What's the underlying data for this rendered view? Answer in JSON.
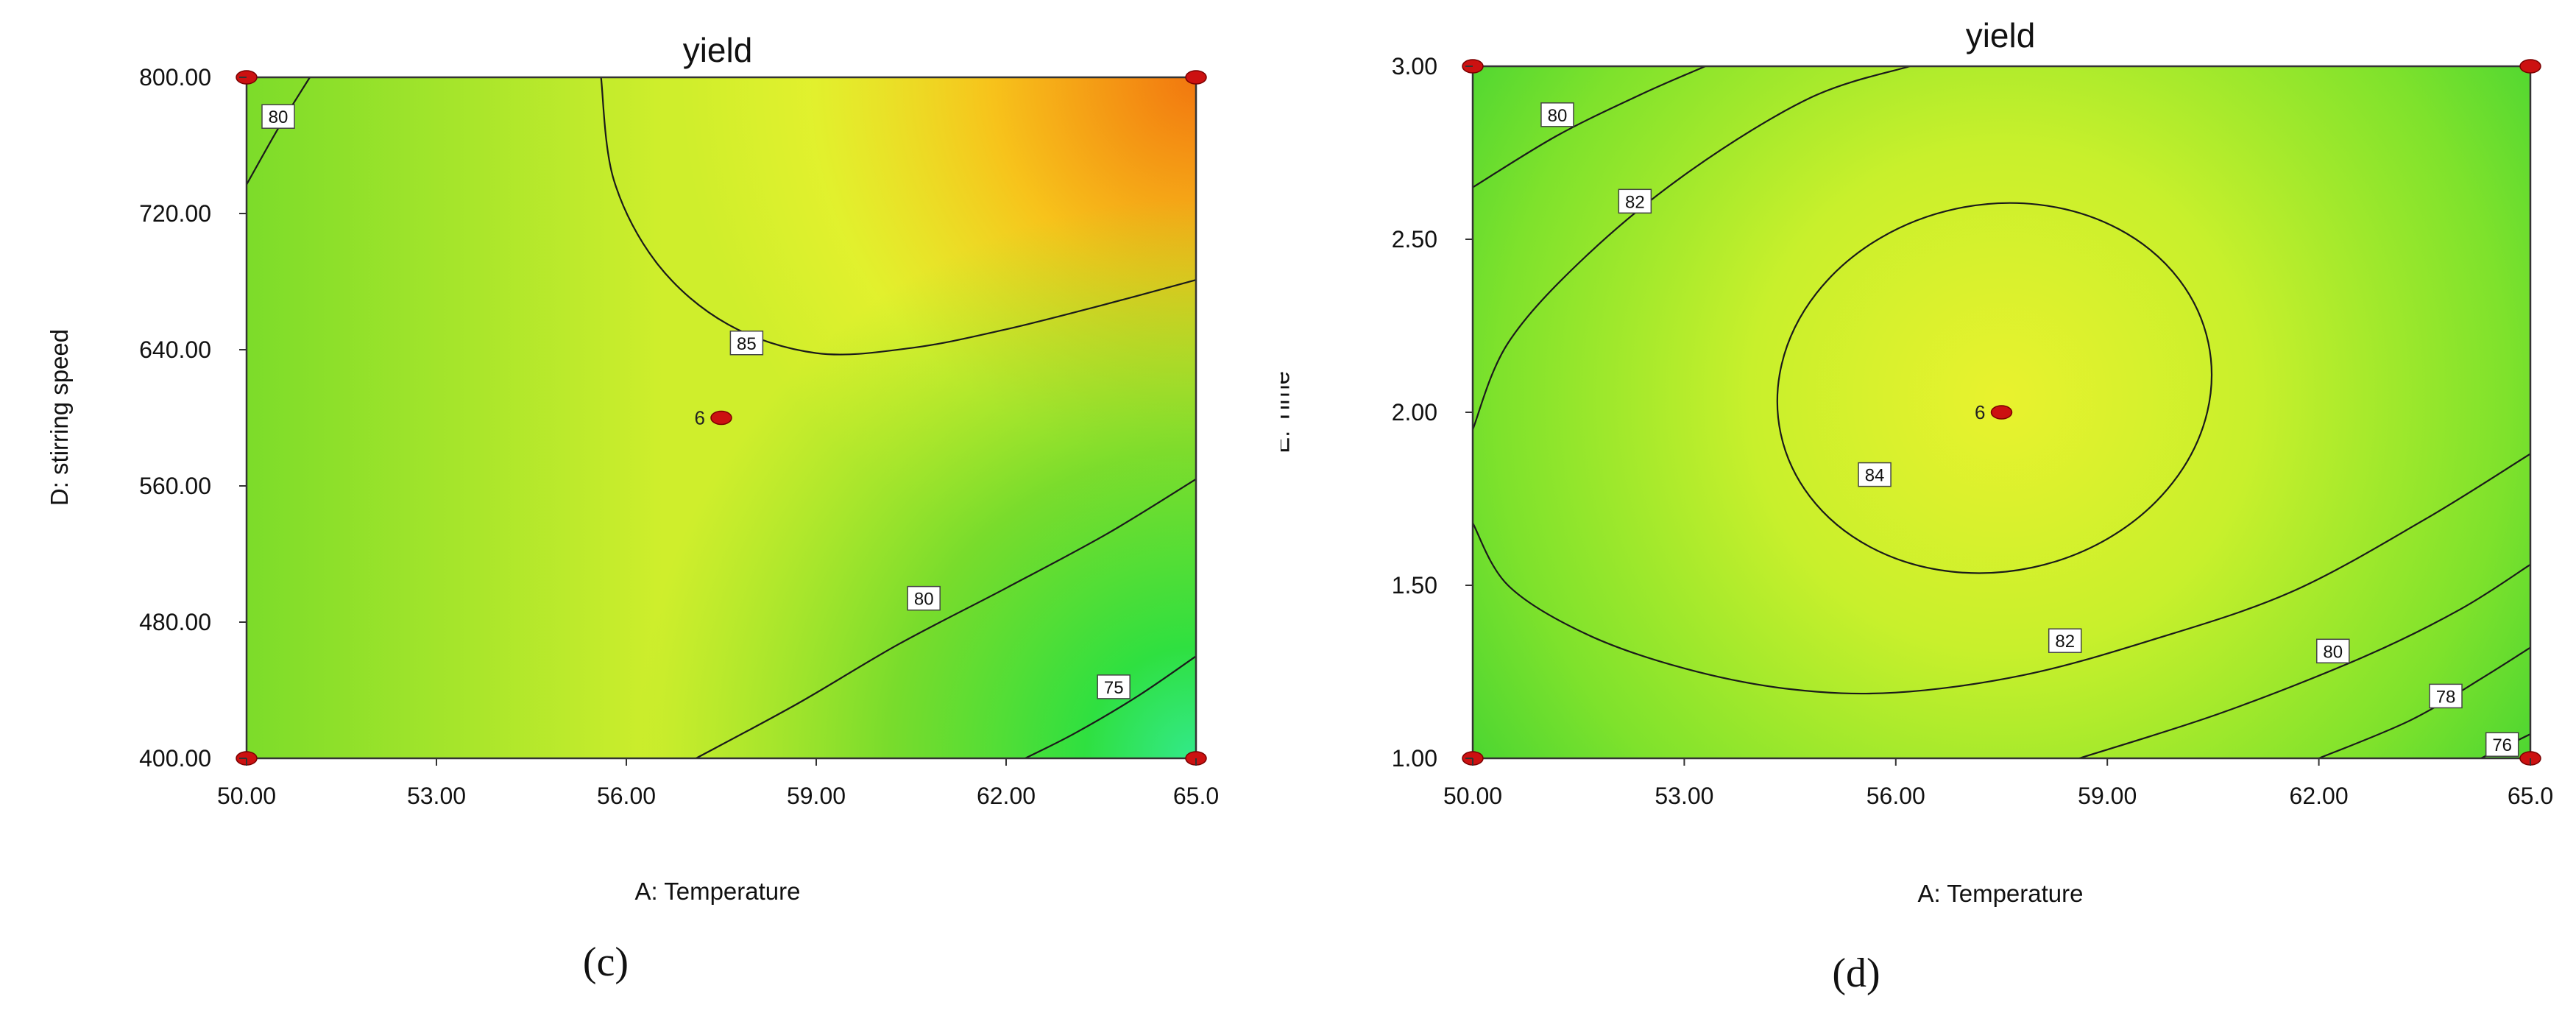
{
  "chart_data": [
    {
      "type": "contour",
      "title": "yield",
      "xlabel": "A: Temperature",
      "ylabel": "D: stirring speed",
      "subfigure_label": "(c)",
      "xlim": [
        50,
        65
      ],
      "ylim": [
        400,
        800
      ],
      "x_ticks": [
        "50.00",
        "53.00",
        "56.00",
        "59.00",
        "62.00",
        "65.0"
      ],
      "y_ticks": [
        "400.00",
        "480.00",
        "560.00",
        "640.00",
        "720.00",
        "800.00"
      ],
      "contours": [
        {
          "level": 80,
          "label": "80",
          "points": [
            [
              50.0,
              737
            ],
            [
              50.5,
              770
            ],
            [
              51.0,
              800
            ]
          ],
          "label_at": [
            50.5,
            777
          ]
        },
        {
          "level": 85,
          "label": "85",
          "points": [
            [
              55.6,
              800
            ],
            [
              55.8,
              740
            ],
            [
              56.5,
              690
            ],
            [
              57.6,
              655
            ],
            [
              59.0,
              638
            ],
            [
              60.5,
              641
            ],
            [
              62.0,
              652
            ],
            [
              63.5,
              666
            ],
            [
              65.0,
              681
            ]
          ],
          "label_at": [
            57.9,
            644
          ]
        },
        {
          "level": 80,
          "label": "80",
          "points": [
            [
              57.1,
              400
            ],
            [
              58.7,
              432
            ],
            [
              60.3,
              467
            ],
            [
              62.0,
              500
            ],
            [
              63.6,
              532
            ],
            [
              65.0,
              564
            ]
          ],
          "label_at": [
            60.7,
            494
          ]
        },
        {
          "level": 75,
          "label": "75",
          "points": [
            [
              62.3,
              400
            ],
            [
              63.1,
              415
            ],
            [
              64.1,
              437
            ],
            [
              65.0,
              460
            ]
          ],
          "label_at": [
            63.7,
            442
          ]
        }
      ],
      "design_points": [
        {
          "x": 50,
          "y": 800,
          "label": ""
        },
        {
          "x": 65,
          "y": 800,
          "label": ""
        },
        {
          "x": 50,
          "y": 400,
          "label": ""
        },
        {
          "x": 65,
          "y": 400,
          "label": ""
        },
        {
          "x": 57.5,
          "y": 600,
          "label": "6"
        }
      ],
      "colors": {
        "low": "#33e98a",
        "mid": "#7cdc2a",
        "high": "#f2770f",
        "line": "#1a1a1a",
        "point": "#cc1111"
      }
    },
    {
      "type": "contour",
      "title": "yield",
      "xlabel": "A: Temperature",
      "ylabel": "E: Time",
      "subfigure_label": "(d)",
      "xlim": [
        50,
        65
      ],
      "ylim": [
        1,
        3
      ],
      "x_ticks": [
        "50.00",
        "53.00",
        "56.00",
        "59.00",
        "62.00",
        "65.0"
      ],
      "y_ticks": [
        "1.00",
        "1.50",
        "2.00",
        "2.50",
        "3.00"
      ],
      "contours": [
        {
          "level": 80,
          "label": "80",
          "points": [
            [
              50.0,
              2.65
            ],
            [
              51.2,
              2.8
            ],
            [
              52.4,
              2.92
            ],
            [
              53.3,
              3.0
            ]
          ],
          "label_at": [
            51.2,
            2.86
          ]
        },
        {
          "level": 82,
          "label": "82",
          "points": [
            [
              50.0,
              1.95
            ],
            [
              50.5,
              2.2
            ],
            [
              51.6,
              2.45
            ],
            [
              53.1,
              2.7
            ],
            [
              54.8,
              2.91
            ],
            [
              56.2,
              3.0
            ]
          ],
          "label_at": [
            52.3,
            2.61
          ]
        },
        {
          "level": 82,
          "label": "82",
          "points": [
            [
              50.0,
              1.68
            ],
            [
              50.5,
              1.5
            ],
            [
              51.6,
              1.36
            ],
            [
              53.0,
              1.26
            ],
            [
              54.5,
              1.2
            ],
            [
              56.0,
              1.19
            ],
            [
              57.8,
              1.24
            ],
            [
              59.6,
              1.34
            ],
            [
              61.6,
              1.48
            ],
            [
              63.5,
              1.69
            ],
            [
              65.0,
              1.88
            ]
          ],
          "label_at": [
            58.4,
            1.34
          ]
        },
        {
          "level": 80,
          "label": "80",
          "points": [
            [
              58.6,
              1.0
            ],
            [
              60.6,
              1.13
            ],
            [
              62.6,
              1.29
            ],
            [
              64.0,
              1.43
            ],
            [
              65.0,
              1.56
            ]
          ],
          "label_at": [
            62.2,
            1.31
          ]
        },
        {
          "level": 78,
          "label": "78",
          "points": [
            [
              62.0,
              1.0
            ],
            [
              63.3,
              1.11
            ],
            [
              64.3,
              1.23
            ],
            [
              65.0,
              1.32
            ]
          ],
          "label_at": [
            63.8,
            1.18
          ]
        },
        {
          "level": 76,
          "label": "76",
          "points": [
            [
              64.3,
              1.0
            ],
            [
              64.7,
              1.04
            ],
            [
              65.0,
              1.07
            ]
          ],
          "label_at": [
            64.6,
            1.04
          ]
        }
      ],
      "ellipse_contour": {
        "level": 84,
        "label": "84",
        "center": [
          57.4,
          2.07
        ],
        "semi_axis_x": 3.1,
        "semi_axis_y": 0.53,
        "label_at": [
          55.7,
          1.82
        ]
      },
      "design_points": [
        {
          "x": 50,
          "y": 3,
          "label": ""
        },
        {
          "x": 65,
          "y": 3,
          "label": ""
        },
        {
          "x": 50,
          "y": 1,
          "label": ""
        },
        {
          "x": 65,
          "y": 1,
          "label": ""
        },
        {
          "x": 57.5,
          "y": 2,
          "label": "6"
        }
      ],
      "colors": {
        "low": "#2ecf35",
        "mid": "#9fee2a",
        "high": "#e9f22e",
        "line": "#1a1a1a",
        "point": "#cc1111"
      }
    }
  ]
}
